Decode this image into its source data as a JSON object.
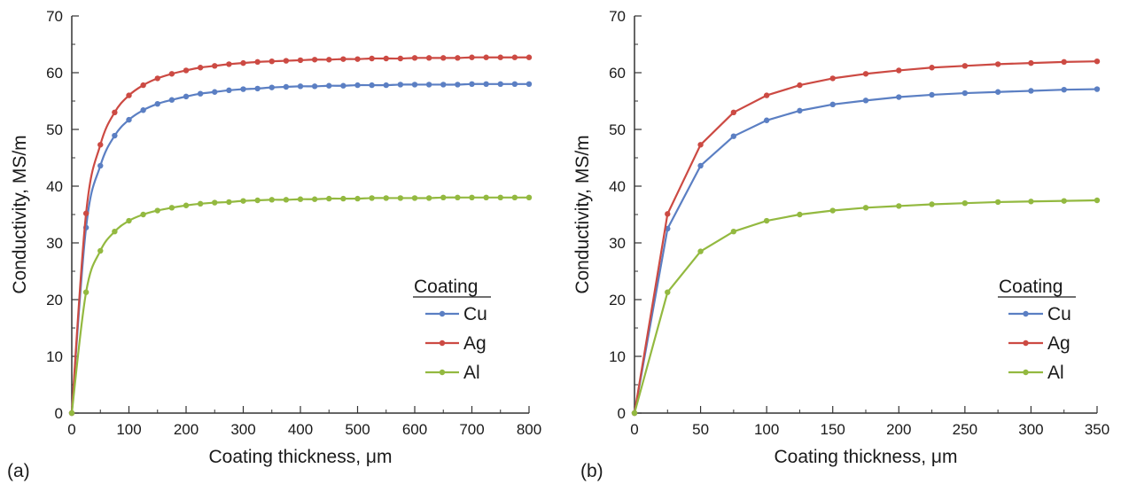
{
  "colors": {
    "Cu": "#5b7fc3",
    "Ag": "#cc4a43",
    "Al": "#93b940",
    "axis": "#333333"
  },
  "chart_data": [
    {
      "type": "line",
      "panel_label": "(a)",
      "xlabel": "Coating thickness, μm",
      "ylabel": "Conductivity, MS/m",
      "xlim": [
        0,
        800
      ],
      "ylim": [
        0,
        70
      ],
      "xticks": [
        "0",
        "100",
        "200",
        "300",
        "400",
        "500",
        "600",
        "700",
        "800"
      ],
      "yticks": [
        "0",
        "10",
        "20",
        "30",
        "40",
        "50",
        "60",
        "70"
      ],
      "grid": false,
      "legend": {
        "title": "Coating",
        "position": "bottom-right"
      },
      "smooth": true,
      "x": [
        0,
        25,
        50,
        75,
        100,
        125,
        150,
        175,
        200,
        225,
        250,
        275,
        300,
        325,
        350,
        375,
        400,
        425,
        450,
        475,
        500,
        525,
        550,
        575,
        600,
        625,
        650,
        675,
        700,
        725,
        750,
        775,
        800
      ],
      "series": [
        {
          "name": "Cu",
          "values": [
            0,
            32.7,
            43.6,
            48.9,
            51.7,
            53.4,
            54.5,
            55.2,
            55.8,
            56.3,
            56.6,
            56.9,
            57.1,
            57.2,
            57.4,
            57.5,
            57.6,
            57.6,
            57.7,
            57.7,
            57.8,
            57.8,
            57.8,
            57.9,
            57.9,
            57.9,
            57.9,
            57.9,
            58.0,
            58.0,
            58.0,
            58.0,
            58.0
          ]
        },
        {
          "name": "Ag",
          "values": [
            0,
            35.2,
            47.3,
            53.0,
            56.0,
            57.8,
            59.0,
            59.8,
            60.4,
            60.9,
            61.2,
            61.5,
            61.7,
            61.9,
            62.0,
            62.1,
            62.2,
            62.3,
            62.3,
            62.4,
            62.4,
            62.5,
            62.5,
            62.5,
            62.6,
            62.6,
            62.6,
            62.6,
            62.7,
            62.7,
            62.7,
            62.7,
            62.7
          ]
        },
        {
          "name": "Al",
          "values": [
            0,
            21.3,
            28.6,
            32.0,
            33.9,
            35.0,
            35.7,
            36.2,
            36.6,
            36.9,
            37.1,
            37.2,
            37.4,
            37.5,
            37.6,
            37.6,
            37.7,
            37.7,
            37.8,
            37.8,
            37.8,
            37.9,
            37.9,
            37.9,
            37.9,
            37.9,
            38.0,
            38.0,
            38.0,
            38.0,
            38.0,
            38.0,
            38.0
          ]
        }
      ]
    },
    {
      "type": "line",
      "panel_label": "(b)",
      "xlabel": "Coating thickness, μm",
      "ylabel": "Conductivity, MS/m",
      "xlim": [
        0,
        350
      ],
      "ylim": [
        0,
        70
      ],
      "xticks": [
        "0",
        "50",
        "100",
        "150",
        "200",
        "250",
        "300",
        "350"
      ],
      "yticks": [
        "0",
        "10",
        "20",
        "30",
        "40",
        "50",
        "60",
        "70"
      ],
      "grid": false,
      "legend": {
        "title": "Coating",
        "position": "bottom-right"
      },
      "smooth": false,
      "x": [
        0,
        25,
        50,
        75,
        100,
        125,
        150,
        175,
        200,
        225,
        250,
        275,
        300,
        325,
        350
      ],
      "series": [
        {
          "name": "Cu",
          "values": [
            0,
            32.5,
            43.6,
            48.8,
            51.6,
            53.3,
            54.4,
            55.1,
            55.7,
            56.1,
            56.4,
            56.6,
            56.8,
            57.0,
            57.1
          ]
        },
        {
          "name": "Ag",
          "values": [
            0,
            35.1,
            47.3,
            53.0,
            56.0,
            57.8,
            59.0,
            59.8,
            60.4,
            60.9,
            61.2,
            61.5,
            61.7,
            61.9,
            62.0
          ]
        },
        {
          "name": "Al",
          "values": [
            0,
            21.3,
            28.5,
            32.0,
            33.9,
            35.0,
            35.7,
            36.2,
            36.5,
            36.8,
            37.0,
            37.2,
            37.3,
            37.4,
            37.5
          ]
        }
      ]
    }
  ]
}
